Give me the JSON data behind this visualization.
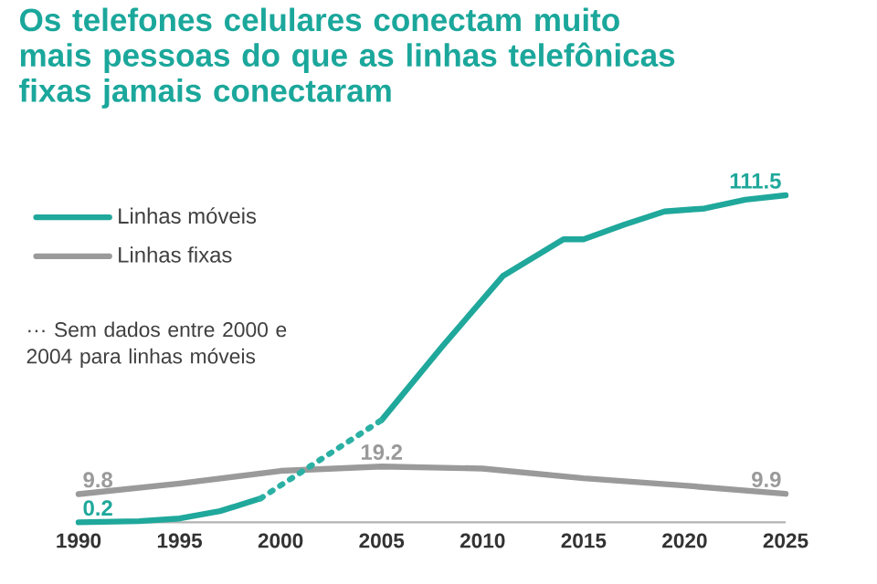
{
  "chart_data": {
    "type": "line",
    "title": "Os telefones celulares conectam muito mais pessoas do que as linhas telefônicas fixas jamais conectaram",
    "annotations": [
      "··· Sem dados entre 2000 e 2004 para linhas móveis"
    ],
    "xlim": [
      1990,
      2025
    ],
    "xticks": [
      1990,
      1995,
      2000,
      2005,
      2010,
      2015,
      2020,
      2025
    ],
    "tick_labels": "x",
    "legend": "top left",
    "marker": "none",
    "series": [
      {
        "name": "Linhas móveis",
        "color": "#1fa89b",
        "line_style": "solid",
        "x": [
          1990,
          1993,
          1995,
          1997,
          1999,
          2002,
          2005,
          2008,
          2011,
          2014,
          2015,
          2017,
          2019,
          2021,
          2023,
          2025
        ],
        "values": [
          0.2,
          0.6,
          1.5,
          4,
          8.3,
          null,
          35,
          60,
          84,
          96.5,
          96.5,
          101.5,
          106,
          107,
          110,
          111.5
        ],
        "value_labels": [
          "0.2",
          null,
          null,
          null,
          null,
          null,
          null,
          null,
          null,
          null,
          null,
          null,
          null,
          null,
          null,
          "111.5"
        ]
      },
      {
        "name": "Linhas fixas",
        "color": "#9a9a9a",
        "line_style": "solid",
        "x": [
          1990,
          1995,
          2000,
          2005,
          2010,
          2015,
          2020,
          2025
        ],
        "values": [
          9.8,
          13.4,
          17.7,
          19.2,
          18.5,
          15.2,
          12.7,
          9.9
        ],
        "value_labels": [
          "9.8",
          null,
          null,
          "19.2",
          null,
          null,
          null,
          "9.9"
        ]
      },
      {
        "color": "#2bb0a4",
        "line_style": "dotted",
        "x": [
          1999,
          2005
        ],
        "values": [
          8.3,
          35
        ]
      }
    ]
  }
}
